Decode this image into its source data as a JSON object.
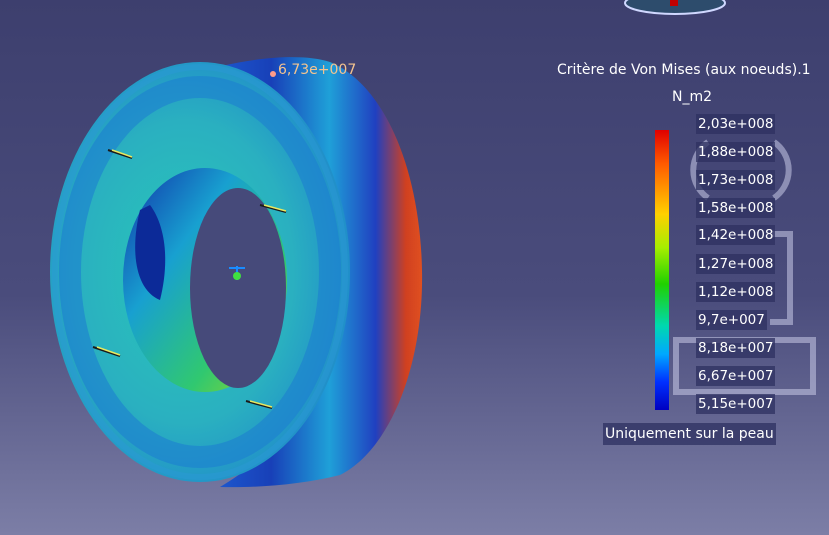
{
  "legend": {
    "title": "Critère de Von Mises (aux noeuds).1",
    "unit": "N_m2",
    "values": [
      "2,03e+008",
      "1,88e+008",
      "1,73e+008",
      "1,58e+008",
      "1,42e+008",
      "1,27e+008",
      "1,12e+008",
      "9,7e+007",
      "8,18e+007",
      "6,67e+007",
      "5,15e+007"
    ],
    "note": "Uniquement sur la peau",
    "gradient_colors": [
      "#e00000",
      "#ff5a00",
      "#ffd000",
      "#a6ee00",
      "#20d000",
      "#00d8b0",
      "#00a8ff",
      "#0030ff",
      "#0000c0"
    ]
  },
  "model": {
    "max_value_label": "6,73e+007"
  },
  "icons": {
    "compass": "compass-icon",
    "axis": "axis-triad-icon",
    "loads": "load-arrow-icon"
  }
}
